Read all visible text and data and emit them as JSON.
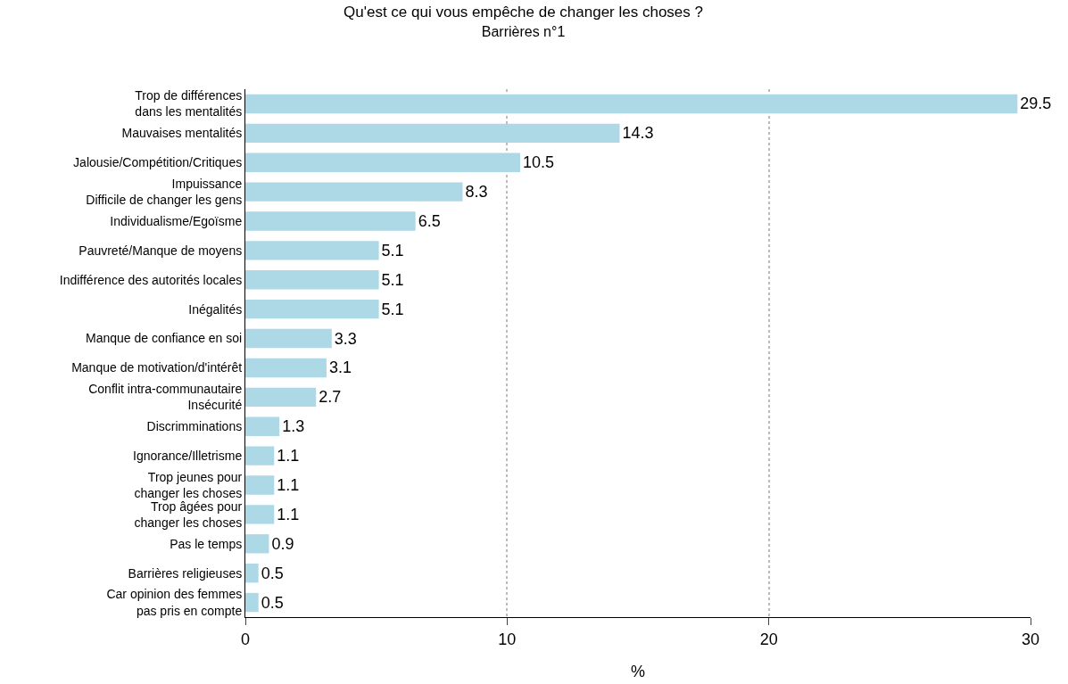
{
  "chart_data": {
    "type": "bar",
    "orientation": "horizontal",
    "title": "Qu'est ce qui vous empêche de changer les choses ?",
    "subtitle": "Barrières n°1",
    "xlabel": "%",
    "categories": [
      "Trop de différences\ndans les mentalités",
      "Mauvaises mentalités",
      "Jalousie/Compétition/Critiques",
      "Impuissance\nDifficile de changer les gens",
      "Individualisme/Egoïsme",
      "Pauvreté/Manque de moyens",
      "Indifférence des autorités locales",
      "Inégalités",
      "Manque de confiance en soi",
      "Manque de motivation/d'intérêt",
      "Conflit intra-communautaire\nInsécurité",
      "Discrimminations",
      "Ignorance/Illetrisme",
      "Trop jeunes pour\nchanger les choses",
      "Trop âgées pour\nchanger les choses",
      "Pas le temps",
      "Barrières religieuses",
      "Car opinion des femmes\npas pris en compte"
    ],
    "values": [
      29.5,
      14.3,
      10.5,
      8.3,
      6.5,
      5.1,
      5.1,
      5.1,
      3.3,
      3.1,
      2.7,
      1.3,
      1.1,
      1.1,
      1.1,
      0.9,
      0.5,
      0.5
    ],
    "color": "#add8e6",
    "xlim": [
      0,
      30
    ],
    "xticks": [
      0,
      10,
      20,
      30
    ],
    "grid": "x",
    "data_labels": true,
    "legend": false
  }
}
